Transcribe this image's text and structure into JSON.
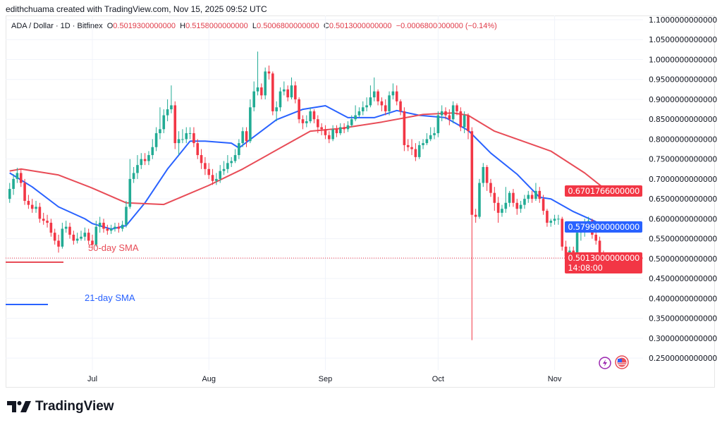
{
  "credit": "edithchuama created with TradingView.com, Nov 15, 2025 09:52 UTC",
  "legend": {
    "symbol": "ADA / Dollar · 1D · Bitfinex",
    "open_label": "O",
    "open": "0.5019300000000",
    "high_label": "H",
    "high": "0.5158000000000",
    "low_label": "L",
    "low": "0.5006800000000",
    "close_label": "C",
    "close": "0.5013000000000",
    "change": "−0.0006800000000 (−0.14%)"
  },
  "logo": {
    "text": "TradingView"
  },
  "colors": {
    "up": "#22ab94",
    "down": "#f23645",
    "sma21": "#2962ff",
    "sma50": "#e84c57",
    "grid": "#f0f3fa"
  },
  "annotations": {
    "sma50_label": "50-day SMA",
    "sma21_label": "21-day SMA"
  },
  "price_tags": {
    "sma50": "0.6701766000000",
    "sma21": "0.5799000000000",
    "last": "0.5013000000000",
    "countdown": "14:08:00"
  },
  "chart_data": {
    "type": "candlestick",
    "x_range": [
      "2025-06-09",
      "2025-11-15"
    ],
    "ylim": [
      0.22,
      1.11
    ],
    "grid": true,
    "y_ticks": [
      "1.1000000000000",
      "1.0500000000000",
      "1.0000000000000",
      "0.9500000000000",
      "0.9000000000000",
      "0.8500000000000",
      "0.8000000000000",
      "0.7500000000000",
      "0.7000000000000",
      "0.6500000000000",
      "0.6000000000000",
      "0.5500000000000",
      "0.5000000000000",
      "0.4500000000000",
      "0.4000000000000",
      "0.3500000000000",
      "0.3000000000000",
      "0.2500000000000"
    ],
    "x_ticks": [
      {
        "label": "Jul",
        "date": "2025-07-01"
      },
      {
        "label": "Aug",
        "date": "2025-08-01"
      },
      {
        "label": "Sep",
        "date": "2025-09-01"
      },
      {
        "label": "Oct",
        "date": "2025-10-01"
      },
      {
        "label": "Nov",
        "date": "2025-11-01"
      }
    ],
    "open": [
      0.65,
      0.675,
      0.7,
      0.715,
      0.69,
      0.645,
      0.635,
      0.625,
      0.63,
      0.6,
      0.595,
      0.59,
      0.565,
      0.545,
      0.53,
      0.575,
      0.58,
      0.56,
      0.545,
      0.55,
      0.555,
      0.565,
      0.545,
      0.535,
      0.58,
      0.59,
      0.575,
      0.57,
      0.575,
      0.58,
      0.575,
      0.585,
      0.63,
      0.7,
      0.715,
      0.735,
      0.75,
      0.745,
      0.76,
      0.78,
      0.815,
      0.825,
      0.86,
      0.875,
      0.885,
      0.79,
      0.8,
      0.8,
      0.815,
      0.815,
      0.79,
      0.76,
      0.74,
      0.725,
      0.71,
      0.695,
      0.7,
      0.72,
      0.725,
      0.74,
      0.745,
      0.76,
      0.79,
      0.82,
      0.795,
      0.88,
      0.92,
      0.93,
      0.91,
      0.97,
      0.965,
      0.87,
      0.88,
      0.92,
      0.925,
      0.905,
      0.935,
      0.9,
      0.85,
      0.84,
      0.845,
      0.87,
      0.85,
      0.83,
      0.825,
      0.81,
      0.8,
      0.825,
      0.815,
      0.83,
      0.825,
      0.835,
      0.85,
      0.86,
      0.87,
      0.88,
      0.885,
      0.905,
      0.92,
      0.895,
      0.885,
      0.87,
      0.91,
      0.92,
      0.895,
      0.87,
      0.785,
      0.78,
      0.775,
      0.755,
      0.785,
      0.79,
      0.8,
      0.81,
      0.815,
      0.86,
      0.87,
      0.86,
      0.85,
      0.885,
      0.87,
      0.83,
      0.86,
      0.82,
      0.61,
      0.605,
      0.69,
      0.73,
      0.69,
      0.665,
      0.64,
      0.615,
      0.625,
      0.64,
      0.665,
      0.64,
      0.625,
      0.635,
      0.65,
      0.66,
      0.65,
      0.67,
      0.65,
      0.62,
      0.59,
      0.595,
      0.6,
      0.6,
      0.53,
      0.505,
      0.52,
      0.5,
      0.565,
      0.57,
      0.59,
      0.595,
      0.56,
      0.545,
      0.51,
      0.5019
    ],
    "high": [
      0.69,
      0.712,
      0.728,
      0.725,
      0.7,
      0.66,
      0.65,
      0.645,
      0.64,
      0.615,
      0.61,
      0.6,
      0.575,
      0.56,
      0.59,
      0.595,
      0.59,
      0.57,
      0.565,
      0.57,
      0.578,
      0.575,
      0.56,
      0.595,
      0.605,
      0.6,
      0.585,
      0.585,
      0.59,
      0.59,
      0.595,
      0.645,
      0.75,
      0.73,
      0.76,
      0.765,
      0.765,
      0.77,
      0.8,
      0.83,
      0.88,
      0.875,
      0.9,
      0.935,
      0.895,
      0.82,
      0.825,
      0.83,
      0.83,
      0.83,
      0.8,
      0.775,
      0.755,
      0.74,
      0.725,
      0.715,
      0.735,
      0.745,
      0.76,
      0.755,
      0.775,
      0.8,
      0.83,
      0.83,
      0.9,
      0.945,
      1.02,
      0.94,
      0.98,
      0.985,
      0.97,
      0.895,
      0.93,
      0.945,
      0.935,
      0.955,
      0.945,
      0.905,
      0.86,
      0.86,
      0.88,
      0.875,
      0.86,
      0.84,
      0.835,
      0.82,
      0.835,
      0.835,
      0.84,
      0.84,
      0.845,
      0.86,
      0.885,
      0.88,
      0.895,
      0.905,
      0.935,
      0.955,
      0.925,
      0.905,
      0.9,
      0.92,
      0.94,
      0.935,
      0.9,
      0.88,
      0.8,
      0.8,
      0.79,
      0.795,
      0.8,
      0.815,
      0.83,
      0.83,
      0.87,
      0.885,
      0.88,
      0.875,
      0.895,
      0.89,
      0.88,
      0.87,
      0.865,
      0.83,
      0.625,
      0.7,
      0.74,
      0.735,
      0.7,
      0.68,
      0.655,
      0.635,
      0.68,
      0.67,
      0.675,
      0.65,
      0.645,
      0.66,
      0.67,
      0.67,
      0.69,
      0.68,
      0.66,
      0.625,
      0.6,
      0.61,
      0.61,
      0.605,
      0.545,
      0.53,
      0.53,
      0.58,
      0.585,
      0.6,
      0.605,
      0.6,
      0.575,
      0.555,
      0.52,
      0.5158
    ],
    "low": [
      0.64,
      0.66,
      0.69,
      0.68,
      0.635,
      0.625,
      0.615,
      0.615,
      0.59,
      0.585,
      0.578,
      0.555,
      0.535,
      0.515,
      0.525,
      0.565,
      0.55,
      0.535,
      0.538,
      0.545,
      0.545,
      0.535,
      0.525,
      0.53,
      0.565,
      0.565,
      0.56,
      0.562,
      0.568,
      0.565,
      0.568,
      0.578,
      0.625,
      0.69,
      0.7,
      0.725,
      0.735,
      0.735,
      0.75,
      0.77,
      0.8,
      0.815,
      0.845,
      0.865,
      0.775,
      0.76,
      0.79,
      0.79,
      0.8,
      0.78,
      0.75,
      0.725,
      0.71,
      0.7,
      0.685,
      0.685,
      0.69,
      0.71,
      0.715,
      0.73,
      0.74,
      0.75,
      0.78,
      0.78,
      0.79,
      0.87,
      0.91,
      0.9,
      0.9,
      0.95,
      0.86,
      0.845,
      0.87,
      0.91,
      0.895,
      0.9,
      0.89,
      0.84,
      0.825,
      0.83,
      0.84,
      0.84,
      0.815,
      0.81,
      0.8,
      0.79,
      0.795,
      0.805,
      0.81,
      0.815,
      0.818,
      0.83,
      0.845,
      0.855,
      0.86,
      0.87,
      0.88,
      0.895,
      0.885,
      0.87,
      0.86,
      0.86,
      0.9,
      0.885,
      0.86,
      0.77,
      0.77,
      0.76,
      0.745,
      0.75,
      0.775,
      0.785,
      0.795,
      0.8,
      0.805,
      0.845,
      0.85,
      0.835,
      0.84,
      0.86,
      0.82,
      0.815,
      0.8,
      0.295,
      0.59,
      0.6,
      0.68,
      0.67,
      0.655,
      0.62,
      0.59,
      0.605,
      0.615,
      0.63,
      0.63,
      0.61,
      0.615,
      0.625,
      0.64,
      0.64,
      0.645,
      0.64,
      0.61,
      0.58,
      0.58,
      0.585,
      0.585,
      0.52,
      0.49,
      0.5,
      0.49,
      0.495,
      0.545,
      0.555,
      0.575,
      0.55,
      0.535,
      0.505,
      0.495,
      0.5007
    ],
    "close": [
      0.675,
      0.7,
      0.715,
      0.69,
      0.645,
      0.635,
      0.625,
      0.63,
      0.6,
      0.595,
      0.59,
      0.565,
      0.545,
      0.53,
      0.575,
      0.58,
      0.56,
      0.545,
      0.55,
      0.555,
      0.565,
      0.545,
      0.535,
      0.58,
      0.59,
      0.575,
      0.57,
      0.575,
      0.58,
      0.575,
      0.585,
      0.63,
      0.7,
      0.715,
      0.735,
      0.75,
      0.745,
      0.76,
      0.78,
      0.815,
      0.825,
      0.86,
      0.875,
      0.885,
      0.79,
      0.8,
      0.8,
      0.815,
      0.815,
      0.79,
      0.76,
      0.74,
      0.725,
      0.71,
      0.695,
      0.7,
      0.72,
      0.725,
      0.74,
      0.745,
      0.76,
      0.79,
      0.82,
      0.795,
      0.88,
      0.92,
      0.93,
      0.91,
      0.97,
      0.965,
      0.87,
      0.88,
      0.92,
      0.925,
      0.905,
      0.935,
      0.9,
      0.85,
      0.84,
      0.845,
      0.87,
      0.85,
      0.83,
      0.825,
      0.81,
      0.8,
      0.825,
      0.815,
      0.83,
      0.825,
      0.835,
      0.85,
      0.86,
      0.87,
      0.88,
      0.885,
      0.905,
      0.92,
      0.895,
      0.885,
      0.87,
      0.91,
      0.92,
      0.895,
      0.87,
      0.785,
      0.78,
      0.775,
      0.755,
      0.785,
      0.79,
      0.8,
      0.81,
      0.815,
      0.86,
      0.87,
      0.86,
      0.85,
      0.885,
      0.87,
      0.83,
      0.86,
      0.82,
      0.61,
      0.605,
      0.69,
      0.73,
      0.69,
      0.665,
      0.64,
      0.615,
      0.625,
      0.64,
      0.665,
      0.64,
      0.625,
      0.635,
      0.65,
      0.66,
      0.65,
      0.67,
      0.65,
      0.62,
      0.59,
      0.595,
      0.6,
      0.6,
      0.53,
      0.505,
      0.52,
      0.5,
      0.565,
      0.57,
      0.59,
      0.595,
      0.56,
      0.545,
      0.51,
      0.5,
      0.5013
    ],
    "series": [
      {
        "name": "21-day SMA",
        "points": [
          [
            "2025-06-09",
            0.715
          ],
          [
            "2025-06-15",
            0.68
          ],
          [
            "2025-06-22",
            0.63
          ],
          [
            "2025-06-29",
            0.6
          ],
          [
            "2025-07-01",
            0.588
          ],
          [
            "2025-07-06",
            0.574
          ],
          [
            "2025-07-10",
            0.583
          ],
          [
            "2025-07-15",
            0.64
          ],
          [
            "2025-07-21",
            0.725
          ],
          [
            "2025-07-27",
            0.795
          ],
          [
            "2025-07-31",
            0.795
          ],
          [
            "2025-08-07",
            0.79
          ],
          [
            "2025-08-09",
            0.778
          ],
          [
            "2025-08-19",
            0.849
          ],
          [
            "2025-08-26",
            0.875
          ],
          [
            "2025-09-01",
            0.884
          ],
          [
            "2025-09-07",
            0.854
          ],
          [
            "2025-09-14",
            0.854
          ],
          [
            "2025-09-20",
            0.872
          ],
          [
            "2025-09-26",
            0.86
          ],
          [
            "2025-10-03",
            0.854
          ],
          [
            "2025-10-09",
            0.822
          ],
          [
            "2025-10-15",
            0.765
          ],
          [
            "2025-10-22",
            0.712
          ],
          [
            "2025-10-28",
            0.654
          ],
          [
            "2025-10-31",
            0.65
          ],
          [
            "2025-11-06",
            0.618
          ],
          [
            "2025-11-15",
            0.5799
          ]
        ]
      },
      {
        "name": "50-day SMA",
        "points": [
          [
            "2025-06-09",
            0.72
          ],
          [
            "2025-06-12",
            0.725
          ],
          [
            "2025-06-22",
            0.71
          ],
          [
            "2025-07-01",
            0.677
          ],
          [
            "2025-07-10",
            0.64
          ],
          [
            "2025-07-20",
            0.636
          ],
          [
            "2025-08-01",
            0.684
          ],
          [
            "2025-08-10",
            0.725
          ],
          [
            "2025-08-20",
            0.778
          ],
          [
            "2025-08-28",
            0.82
          ],
          [
            "2025-09-05",
            0.827
          ],
          [
            "2025-09-16",
            0.843
          ],
          [
            "2025-09-27",
            0.862
          ],
          [
            "2025-10-05",
            0.866
          ],
          [
            "2025-10-09",
            0.86
          ],
          [
            "2025-10-16",
            0.82
          ],
          [
            "2025-10-31",
            0.77
          ],
          [
            "2025-11-09",
            0.715
          ],
          [
            "2025-11-15",
            0.6702
          ]
        ]
      }
    ]
  }
}
